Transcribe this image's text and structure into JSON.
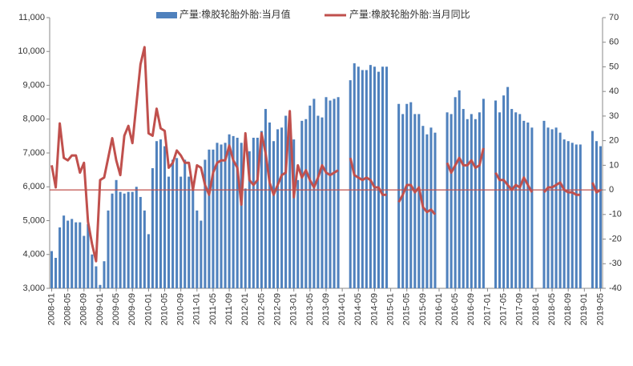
{
  "chart_data": {
    "type": "bar_line",
    "categories": [
      "2008-01",
      null,
      null,
      null,
      "2008-05",
      null,
      null,
      null,
      "2008-09",
      null,
      null,
      null,
      "2009-01",
      null,
      null,
      null,
      "2009-05",
      null,
      null,
      null,
      "2009-09",
      null,
      null,
      null,
      "2010-01",
      null,
      null,
      null,
      "2010-05",
      null,
      null,
      null,
      "2010-09",
      null,
      null,
      null,
      "2011-01",
      null,
      null,
      null,
      "2011-05",
      null,
      null,
      null,
      "2011-09",
      null,
      null,
      null,
      "2012-01",
      null,
      null,
      null,
      "2012-05",
      null,
      null,
      null,
      "2012-09",
      null,
      null,
      null,
      "2013-01",
      null,
      null,
      null,
      "2013-05",
      null,
      null,
      null,
      "2013-09",
      null,
      null,
      null,
      "2014-01",
      null,
      null,
      null,
      "2014-05",
      null,
      null,
      null,
      "2014-09",
      null,
      null,
      null,
      "2015-01",
      null,
      null,
      null,
      "2015-05",
      null,
      null,
      null,
      "2015-09",
      null,
      null,
      null,
      "2016-01",
      null,
      null,
      null,
      "2016-05",
      null,
      null,
      null,
      "2016-09",
      null,
      null,
      null,
      "2017-01",
      null,
      null,
      null,
      "2017-05",
      null,
      null,
      null,
      "2017-09",
      null,
      null,
      null,
      "2018-01",
      null,
      null,
      null,
      "2018-05",
      null,
      null,
      null,
      "2018-09",
      null,
      null,
      null,
      "2019-01",
      null,
      null,
      null,
      "2019-05"
    ],
    "series": [
      {
        "name": "产量:橡胶轮胎外胎:当月值",
        "type": "bar",
        "color": "#4f81bd",
        "values": [
          4100,
          3900,
          4800,
          5150,
          5000,
          5050,
          4950,
          4950,
          4550,
          4900,
          4000,
          3650,
          3100,
          3800,
          5300,
          5800,
          6200,
          5850,
          5800,
          5850,
          5850,
          6000,
          5700,
          5300,
          4600,
          6550,
          7350,
          7400,
          7200,
          6300,
          6800,
          6850,
          6300,
          6800,
          6300,
          5900,
          5300,
          5000,
          6800,
          7100,
          7100,
          7300,
          7250,
          7300,
          7550,
          7500,
          7450,
          7300,
          5950,
          7050,
          7450,
          7450,
          7650,
          8300,
          7900,
          7350,
          7700,
          7750,
          8100,
          8000,
          7400,
          6200,
          7950,
          8000,
          8400,
          8600,
          8100,
          8050,
          8650,
          8550,
          8600,
          8650,
          null,
          null,
          9150,
          9650,
          9550,
          9450,
          9450,
          9600,
          9550,
          9400,
          9550,
          9550,
          null,
          null,
          8450,
          8150,
          8450,
          8500,
          8150,
          8150,
          7800,
          7550,
          7750,
          7600,
          null,
          null,
          8200,
          8150,
          8650,
          8850,
          8300,
          8000,
          8150,
          8000,
          8200,
          8600,
          null,
          null,
          8550,
          8200,
          8700,
          8950,
          8300,
          8200,
          8150,
          7950,
          7900,
          7750,
          null,
          null,
          7950,
          7750,
          7700,
          7750,
          7600,
          7400,
          7350,
          7300,
          7250,
          7250,
          null,
          null,
          7650,
          7350,
          7200
        ]
      },
      {
        "name": "产量:橡胶轮胎外胎:当月同比",
        "type": "line",
        "axis": "y2",
        "color": "#c0504d",
        "values": [
          10,
          1,
          27,
          13,
          12,
          14,
          14,
          7,
          11,
          -13,
          -22,
          -29,
          4,
          5,
          13,
          21,
          12,
          6,
          22,
          26,
          19,
          35,
          51,
          58,
          23,
          22,
          33,
          25,
          24,
          9,
          11,
          16,
          14,
          11,
          11,
          0,
          10,
          9,
          2,
          -2,
          7,
          11,
          12,
          12,
          18,
          12,
          9,
          -6,
          23,
          4,
          2,
          4,
          23,
          15,
          3,
          -2,
          2,
          6,
          7,
          32,
          -3,
          10,
          5,
          8,
          4,
          1,
          5,
          10,
          7,
          6,
          7,
          8,
          null,
          null,
          13,
          6,
          5,
          4,
          5,
          4,
          1,
          1,
          -2,
          -2,
          null,
          null,
          -5,
          -2,
          2,
          2,
          -1,
          1,
          -7,
          -9,
          -8,
          -10,
          null,
          null,
          11,
          7,
          10,
          13,
          10,
          10,
          12,
          9,
          10,
          17,
          null,
          null,
          7,
          4,
          4,
          2,
          0,
          2,
          1,
          5,
          2,
          -1,
          null,
          null,
          -1,
          1,
          1,
          2,
          3,
          0,
          -1,
          -1,
          -2,
          -2,
          null,
          null,
          3,
          -1,
          0
        ]
      }
    ],
    "ylim": [
      3000,
      11000
    ],
    "yticks": [
      {
        "value": 3000,
        "label": "3,000"
      },
      {
        "value": 4000,
        "label": "4,000"
      },
      {
        "value": 5000,
        "label": "5,000"
      },
      {
        "value": 6000,
        "label": "6,000"
      },
      {
        "value": 7000,
        "label": "7,000"
      },
      {
        "value": 8000,
        "label": "8,000"
      },
      {
        "value": 9000,
        "label": "9,000"
      },
      {
        "value": 10000,
        "label": "10,000"
      },
      {
        "value": 11000,
        "label": "11,000"
      }
    ],
    "y2lim": [
      -40,
      70
    ],
    "y2ticks": [
      -40,
      -30,
      -20,
      -10,
      0,
      10,
      20,
      30,
      40,
      50,
      60,
      70
    ],
    "legend": "top"
  }
}
